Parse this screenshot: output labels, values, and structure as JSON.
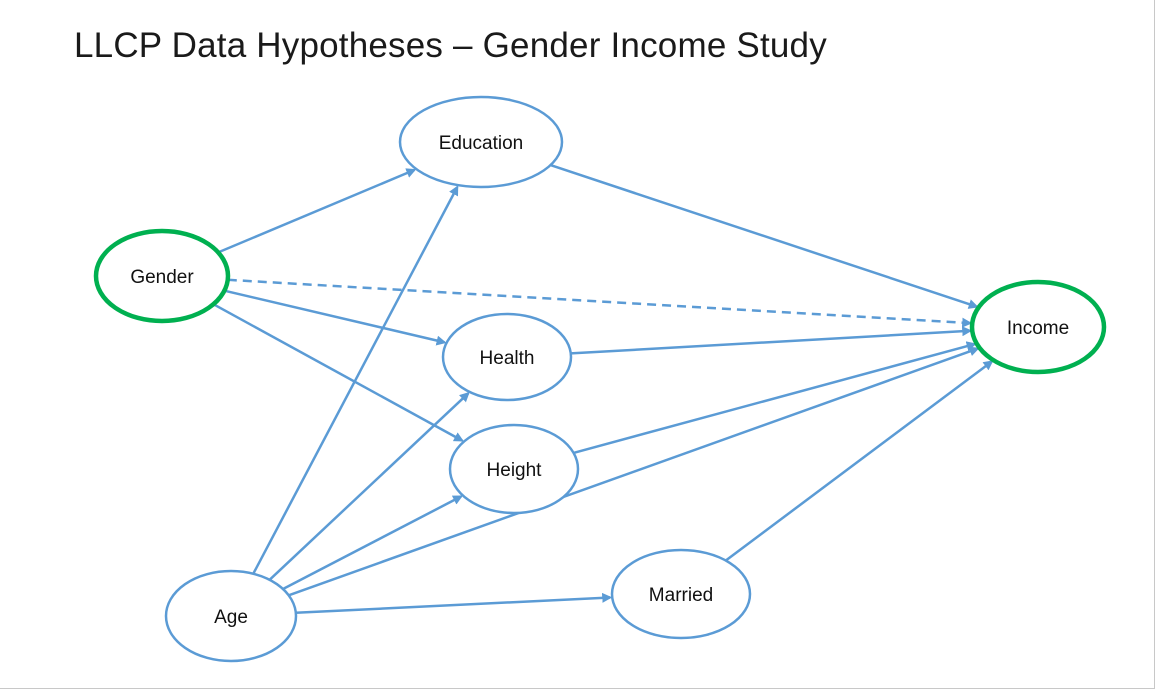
{
  "title": "LLCP Data Hypotheses – Gender Income Study",
  "colors": {
    "edge": "#5b9bd5",
    "node_border": "#5b9bd5",
    "highlight_border": "#00b050",
    "node_fill": "#ffffff"
  },
  "nodes": {
    "education": {
      "label": "Education",
      "highlighted": false
    },
    "gender": {
      "label": "Gender",
      "highlighted": true
    },
    "income": {
      "label": "Income",
      "highlighted": true
    },
    "health": {
      "label": "Health",
      "highlighted": false
    },
    "height": {
      "label": "Height",
      "highlighted": false
    },
    "age": {
      "label": "Age",
      "highlighted": false
    },
    "married": {
      "label": "Married",
      "highlighted": false
    }
  },
  "edges": [
    {
      "from": "gender",
      "to": "education",
      "style": "solid"
    },
    {
      "from": "education",
      "to": "income",
      "style": "solid"
    },
    {
      "from": "gender",
      "to": "income",
      "style": "dashed"
    },
    {
      "from": "gender",
      "to": "health",
      "style": "solid"
    },
    {
      "from": "gender",
      "to": "height",
      "style": "solid"
    },
    {
      "from": "health",
      "to": "income",
      "style": "solid"
    },
    {
      "from": "height",
      "to": "income",
      "style": "solid"
    },
    {
      "from": "age",
      "to": "education",
      "style": "solid"
    },
    {
      "from": "age",
      "to": "health",
      "style": "solid"
    },
    {
      "from": "age",
      "to": "height",
      "style": "solid"
    },
    {
      "from": "age",
      "to": "income",
      "style": "solid"
    },
    {
      "from": "age",
      "to": "married",
      "style": "solid"
    },
    {
      "from": "married",
      "to": "income",
      "style": "solid"
    }
  ]
}
